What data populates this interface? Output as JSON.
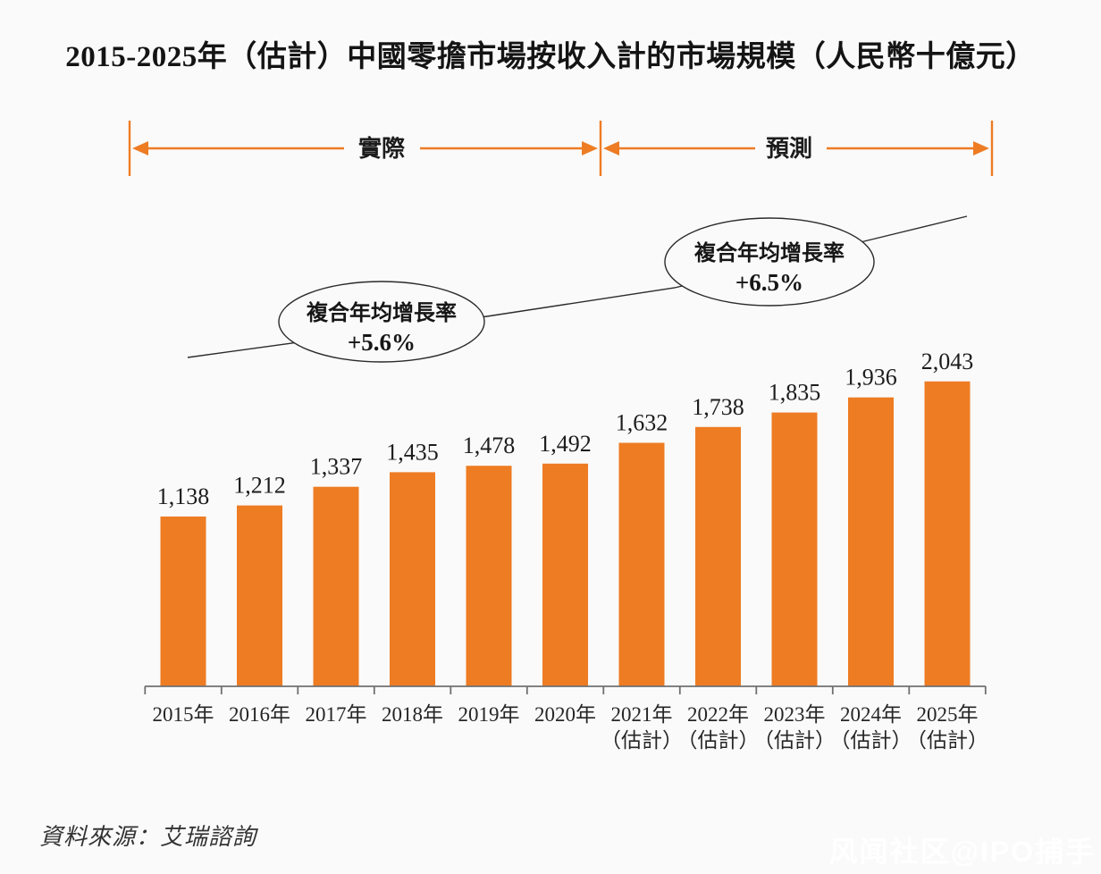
{
  "title": "2015-2025年（估計）中國零擔市場按收入計的市場規模（人民幣十億元）",
  "source": "資料來源：艾瑞諮詢",
  "watermark": "风闻社区@IPO捕手",
  "colors": {
    "bar": "#EE7C23",
    "arrow": "#EE7C23",
    "axis": "#707070",
    "ink": "#1c1c1c"
  },
  "chart_data": {
    "type": "bar",
    "title": "2015-2025年（估計）中國零擔市場按收入計的市場規模",
    "unit": "人民幣十億元",
    "categories": [
      "2015年",
      "2016年",
      "2017年",
      "2018年",
      "2019年",
      "2020年",
      "2021年",
      "2022年",
      "2023年",
      "2024年",
      "2025年"
    ],
    "category_sublabels": [
      "",
      "",
      "",
      "",
      "",
      "",
      "（估計）",
      "（估計）",
      "（估計）",
      "（估計）",
      "（估計）"
    ],
    "values": [
      1138,
      1212,
      1337,
      1435,
      1478,
      1492,
      1632,
      1738,
      1835,
      1936,
      2043
    ],
    "value_labels": [
      "1,138",
      "1,212",
      "1,337",
      "1,435",
      "1,478",
      "1,492",
      "1,632",
      "1,738",
      "1,835",
      "1,936",
      "2,043"
    ],
    "ylim": [
      0,
      2200
    ],
    "grid": false,
    "legend": false,
    "bands": [
      {
        "label": "實際",
        "range": [
          "2015年",
          "2020年"
        ]
      },
      {
        "label": "預測",
        "range": [
          "2021年",
          "2025年"
        ]
      }
    ],
    "cagr_annotations": [
      {
        "line1": "複合年均增長率",
        "line2": "+5.6%",
        "applies_to": "實際"
      },
      {
        "line1": "複合年均增長率",
        "line2": "+6.5%",
        "applies_to": "預測"
      }
    ]
  }
}
